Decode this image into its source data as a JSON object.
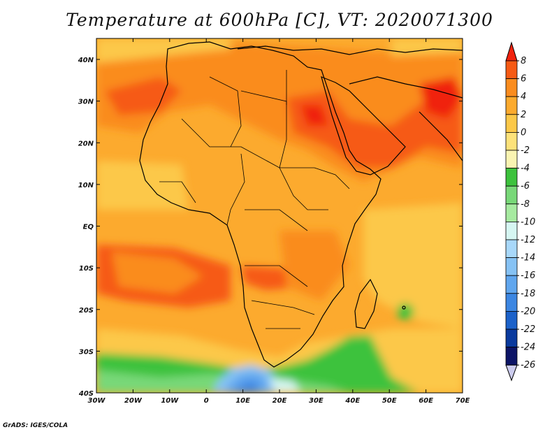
{
  "title": "Temperature at 600hPa [C], VT: 2020071300",
  "credit": "GrADS: IGES/COLA",
  "map": {
    "lon_labels": [
      "30W",
      "20W",
      "10W",
      "0",
      "10E",
      "20E",
      "30E",
      "40E",
      "50E",
      "60E",
      "70E"
    ],
    "lat_labels": [
      "40N",
      "30N",
      "20N",
      "10N",
      "EQ",
      "10S",
      "20S",
      "30S",
      "40S"
    ]
  },
  "colorbar": {
    "levels": [
      "8",
      "6",
      "4",
      "2",
      "0",
      "-2",
      "-4",
      "-6",
      "-8",
      "-10",
      "-12",
      "-14",
      "-16",
      "-18",
      "-20",
      "-22",
      "-24",
      "-26"
    ],
    "colors": [
      "#f0220e",
      "#f65a14",
      "#fa8c1e",
      "#fcaa2e",
      "#fcc848",
      "#fde27a",
      "#faf4b2",
      "#3cc23c",
      "#78d878",
      "#a6eaa0",
      "#d6f6f2",
      "#a8d8fa",
      "#86c2f4",
      "#60a6ee",
      "#3c86e2",
      "#1c62ca",
      "#0a3a9e",
      "#0c1466",
      "#ccccee"
    ]
  }
}
